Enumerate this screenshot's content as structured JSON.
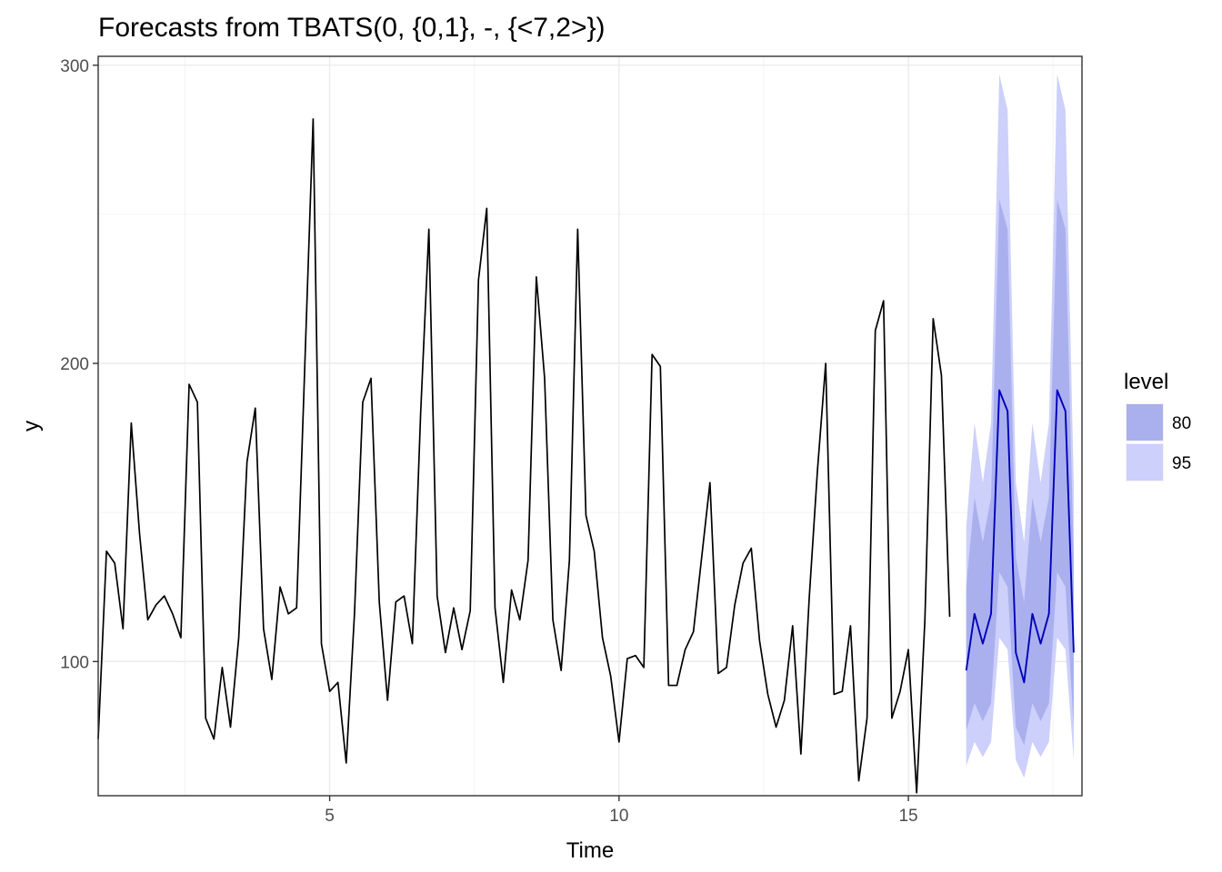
{
  "chart_data": {
    "type": "line",
    "title": "Forecasts from TBATS(0, {0,1}, -, {<7,2>})",
    "xlabel": "Time",
    "ylabel": "y",
    "xlim": [
      1.0,
      18.0
    ],
    "ylim": [
      55,
      303
    ],
    "x_ticks": [
      5,
      10,
      15
    ],
    "x_tick_labels": [
      "5",
      "10",
      "15"
    ],
    "y_ticks": [
      100,
      200,
      300
    ],
    "y_tick_labels": [
      "100",
      "200",
      "300"
    ],
    "grid": true,
    "legend": {
      "title": "level",
      "placement": "right",
      "entries": [
        {
          "label": "80",
          "color": "#aab0ee"
        },
        {
          "label": "95",
          "color": "#ccd0fa"
        }
      ]
    },
    "colors": {
      "observed_line": "#000000",
      "forecast_line": "#0000b8",
      "band_80": "#aab0ee",
      "band_95": "#ccd0fa"
    },
    "observed": {
      "name": "observed",
      "start": 1.0,
      "step": 0.142857,
      "values": [
        74,
        137,
        133,
        111,
        180,
        143,
        114,
        119,
        122,
        116,
        108,
        193,
        187,
        81,
        74,
        98,
        78,
        108,
        167,
        185,
        111,
        94,
        125,
        116,
        118,
        200,
        282,
        106,
        90,
        93,
        66,
        116,
        187,
        195,
        120,
        87,
        120,
        122,
        106,
        183,
        245,
        122,
        103,
        118,
        104,
        117,
        228,
        252,
        118,
        93,
        124,
        114,
        134,
        229,
        195,
        114,
        97,
        134,
        245,
        149,
        137,
        108,
        95,
        73,
        101,
        102,
        98,
        203,
        199,
        92,
        92,
        104,
        110,
        135,
        160,
        96,
        98,
        119,
        133,
        138,
        107,
        89,
        78,
        87,
        112,
        69,
        121,
        164,
        200,
        89,
        90,
        112,
        60,
        81,
        211,
        221,
        81,
        90,
        104,
        56,
        114,
        215,
        196,
        115
      ]
    },
    "forecast": {
      "name": "forecast",
      "start": 16.0,
      "step": 0.142857,
      "values": [
        97,
        116,
        106,
        116,
        191,
        184,
        103,
        93,
        116,
        106,
        116,
        191,
        184,
        103
      ],
      "lo80": [
        77,
        86,
        80,
        86,
        130,
        125,
        78,
        72,
        86,
        80,
        86,
        130,
        125,
        78
      ],
      "hi80": [
        125,
        155,
        140,
        155,
        255,
        245,
        135,
        120,
        155,
        140,
        155,
        255,
        245,
        135
      ],
      "lo95": [
        65,
        73,
        68,
        73,
        108,
        104,
        67,
        61,
        73,
        68,
        73,
        108,
        104,
        67
      ],
      "hi95": [
        145,
        180,
        160,
        180,
        297,
        285,
        160,
        140,
        180,
        160,
        180,
        297,
        285,
        160
      ]
    }
  }
}
